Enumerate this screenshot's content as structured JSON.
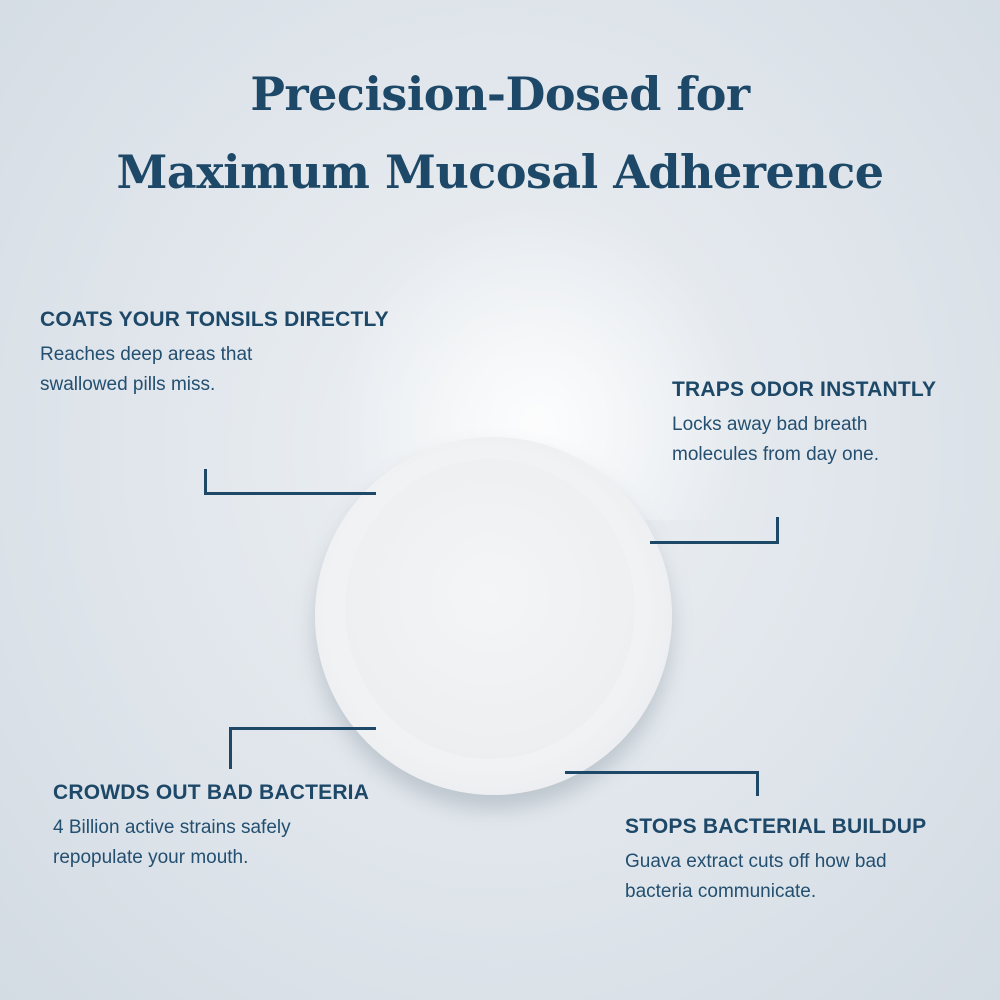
{
  "title": {
    "line1": "Precision-Dosed for",
    "line2": "Maximum Mucosal Adherence"
  },
  "callouts": [
    {
      "heading": "COATS YOUR TONSILS DIRECTLY",
      "text": "Reaches deep areas that swallowed pills miss."
    },
    {
      "heading": "TRAPS ODOR INSTANTLY",
      "text": "Locks away bad breath molecules from day one."
    },
    {
      "heading": "CROWDS OUT BAD BACTERIA",
      "text": "4 Billion active strains safely repopulate your mouth."
    },
    {
      "heading": "STOPS BACTERIAL BUILDUP",
      "text": "Guava extract cuts off how bad bacteria communicate."
    }
  ],
  "colors": {
    "text": "#1d4868",
    "background": "#dfe5eb",
    "tablet": "#f1f2f4"
  }
}
